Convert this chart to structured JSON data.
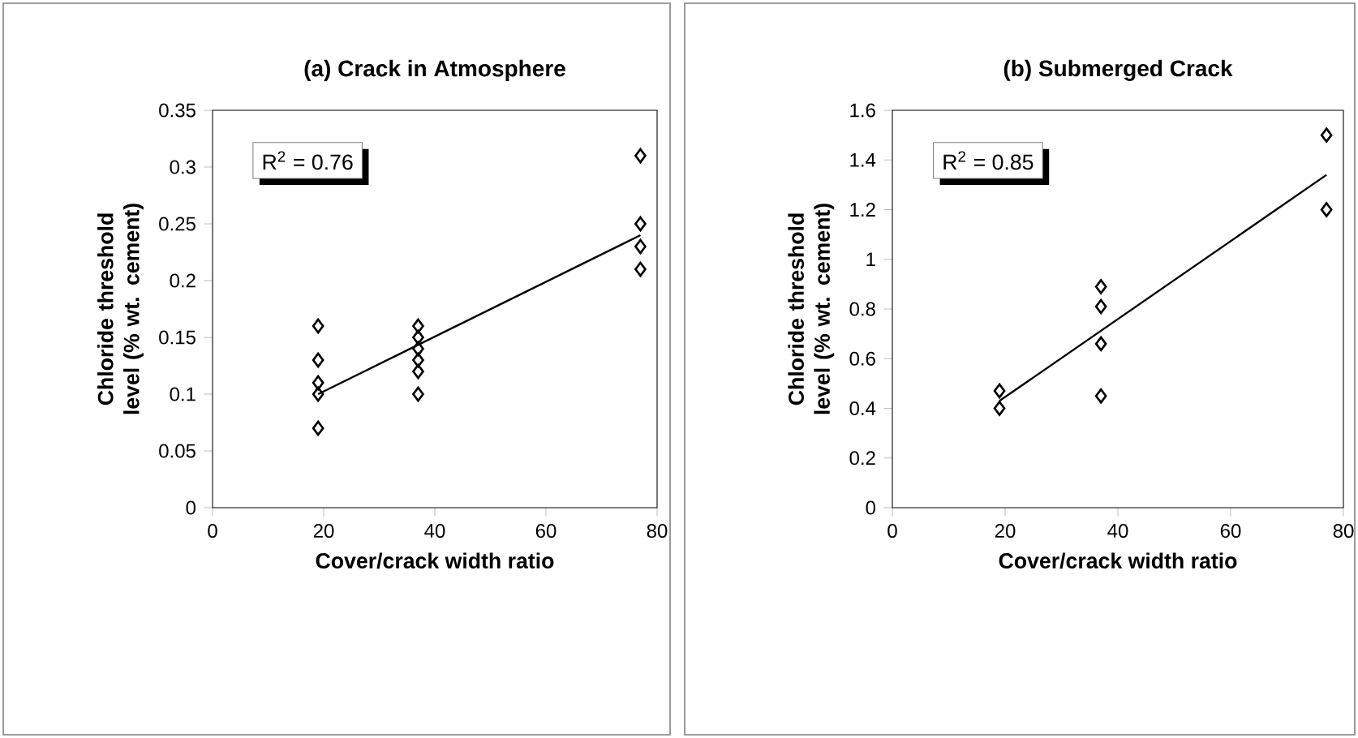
{
  "chart_data": [
    {
      "type": "scatter",
      "title": "(a)  Crack in Atmosphere",
      "xlabel": "Cover/crack width ratio",
      "ylabel": "Chloride threshold level (% wt. cement)",
      "annotations": [
        "R$^{2}$ = 0.76"
      ],
      "xlim": [
        0,
        80
      ],
      "xticks": [
        0,
        20,
        40,
        60,
        80
      ],
      "ylim": [
        0,
        0.35
      ],
      "yticks": [
        0,
        0.05,
        0.1,
        0.15,
        0.2,
        0.25,
        0.3,
        0.35
      ],
      "grid": false,
      "series": [
        {
          "marker": "diamond",
          "color": "#000000",
          "x": [
            19,
            19,
            19,
            19,
            19,
            37,
            37,
            37,
            37,
            37,
            37,
            77,
            77,
            77,
            77
          ],
          "values": [
            0.16,
            0.13,
            0.11,
            0.1,
            0.07,
            0.16,
            0.15,
            0.14,
            0.13,
            0.12,
            0.1,
            0.31,
            0.25,
            0.23,
            0.21
          ]
        },
        {
          "type": "line",
          "marker": "none",
          "color": "#000000",
          "x": [
            19,
            77
          ],
          "values": [
            0.1,
            0.24
          ]
        }
      ]
    },
    {
      "type": "scatter",
      "title": "(b)  Submerged Crack",
      "xlabel": "Cover/crack width ratio",
      "ylabel": "Chloride threshold level (% wt. cement)",
      "annotations": [
        "R$^{2}$ = 0.85"
      ],
      "xlim": [
        0,
        80
      ],
      "xticks": [
        0,
        20,
        40,
        60,
        80
      ],
      "ylim": [
        0,
        1.6
      ],
      "yticks": [
        0,
        0.2,
        0.4,
        0.6,
        0.8,
        1,
        1.2,
        1.4,
        1.6
      ],
      "grid": false,
      "series": [
        {
          "marker": "diamond",
          "color": "#000000",
          "x": [
            19,
            19,
            37,
            37,
            37,
            37,
            77,
            77
          ],
          "values": [
            0.47,
            0.4,
            0.89,
            0.81,
            0.66,
            0.45,
            1.5,
            1.2
          ]
        },
        {
          "type": "line",
          "marker": "none",
          "color": "#000000",
          "x": [
            19,
            77
          ],
          "values": [
            0.43,
            1.34
          ]
        }
      ]
    }
  ]
}
